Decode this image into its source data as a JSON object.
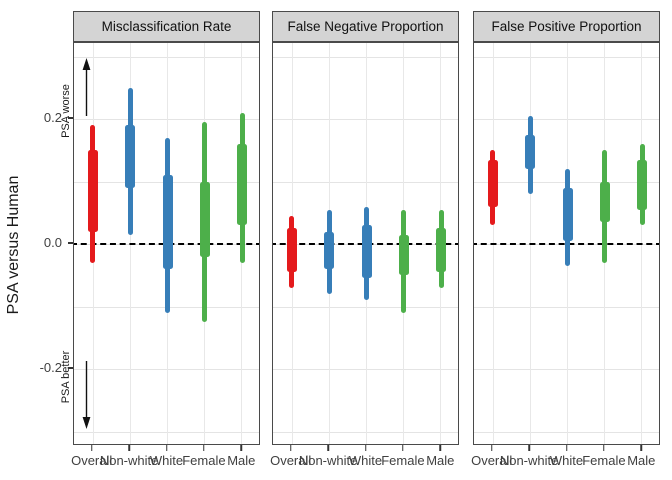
{
  "chart_data": {
    "type": "interval",
    "description": "Faceted interval (credible-interval) plot comparing PSA versus Human across error metrics and subgroups; thick segment = inner interval, thin line = outer interval.",
    "ylabel": "PSA versus Human",
    "yticks": [
      {
        "value": 0.2,
        "label": "0.2"
      },
      {
        "value": 0.0,
        "label": "0.0"
      },
      {
        "value": -0.2,
        "label": "-0.2"
      }
    ],
    "ylim": [
      -0.323,
      0.322
    ],
    "gridlines_y": [
      0.3,
      0.2,
      0.1,
      0.0,
      -0.1,
      -0.2,
      -0.3
    ],
    "reference_line_y": 0,
    "grid": "on",
    "legend": "none",
    "categories": [
      "Overall",
      "Non-white",
      "White",
      "Female",
      "Male"
    ],
    "colors": {
      "red": "#E41A1C",
      "blue": "#377EB8",
      "green": "#4DAF4A"
    },
    "annotations": [
      {
        "text": "PSA worse",
        "direction": "up"
      },
      {
        "text": "PSA better",
        "direction": "down"
      }
    ],
    "panels": [
      {
        "title": "Misclassification Rate",
        "series": [
          {
            "category": "Overall",
            "color": "#E41A1C",
            "outer": [
              -0.03,
              0.19
            ],
            "inner": [
              0.02,
              0.15
            ]
          },
          {
            "category": "Non-white",
            "color": "#377EB8",
            "outer": [
              0.015,
              0.25
            ],
            "inner": [
              0.09,
              0.19
            ]
          },
          {
            "category": "White",
            "color": "#377EB8",
            "outer": [
              -0.11,
              0.17
            ],
            "inner": [
              -0.04,
              0.11
            ]
          },
          {
            "category": "Female",
            "color": "#4DAF4A",
            "outer": [
              -0.125,
              0.195
            ],
            "inner": [
              -0.02,
              0.1
            ]
          },
          {
            "category": "Male",
            "color": "#4DAF4A",
            "outer": [
              -0.03,
              0.21
            ],
            "inner": [
              0.03,
              0.16
            ]
          }
        ]
      },
      {
        "title": "False Negative Proportion",
        "series": [
          {
            "category": "Overall",
            "color": "#E41A1C",
            "outer": [
              -0.07,
              0.045
            ],
            "inner": [
              -0.045,
              0.025
            ]
          },
          {
            "category": "Non-white",
            "color": "#377EB8",
            "outer": [
              -0.08,
              0.055
            ],
            "inner": [
              -0.04,
              0.02
            ]
          },
          {
            "category": "White",
            "color": "#377EB8",
            "outer": [
              -0.09,
              0.06
            ],
            "inner": [
              -0.055,
              0.03
            ]
          },
          {
            "category": "Female",
            "color": "#4DAF4A",
            "outer": [
              -0.11,
              0.055
            ],
            "inner": [
              -0.05,
              0.015
            ]
          },
          {
            "category": "Male",
            "color": "#4DAF4A",
            "outer": [
              -0.07,
              0.055
            ],
            "inner": [
              -0.045,
              0.025
            ]
          }
        ]
      },
      {
        "title": "False Positive Proportion",
        "series": [
          {
            "category": "Overall",
            "color": "#E41A1C",
            "outer": [
              0.03,
              0.15
            ],
            "inner": [
              0.06,
              0.135
            ]
          },
          {
            "category": "Non-white",
            "color": "#377EB8",
            "outer": [
              0.08,
              0.205
            ],
            "inner": [
              0.12,
              0.175
            ]
          },
          {
            "category": "White",
            "color": "#377EB8",
            "outer": [
              -0.035,
              0.12
            ],
            "inner": [
              0.005,
              0.09
            ]
          },
          {
            "category": "Female",
            "color": "#4DAF4A",
            "outer": [
              -0.03,
              0.15
            ],
            "inner": [
              0.035,
              0.1
            ]
          },
          {
            "category": "Male",
            "color": "#4DAF4A",
            "outer": [
              0.03,
              0.16
            ],
            "inner": [
              0.055,
              0.135
            ]
          }
        ]
      }
    ]
  }
}
